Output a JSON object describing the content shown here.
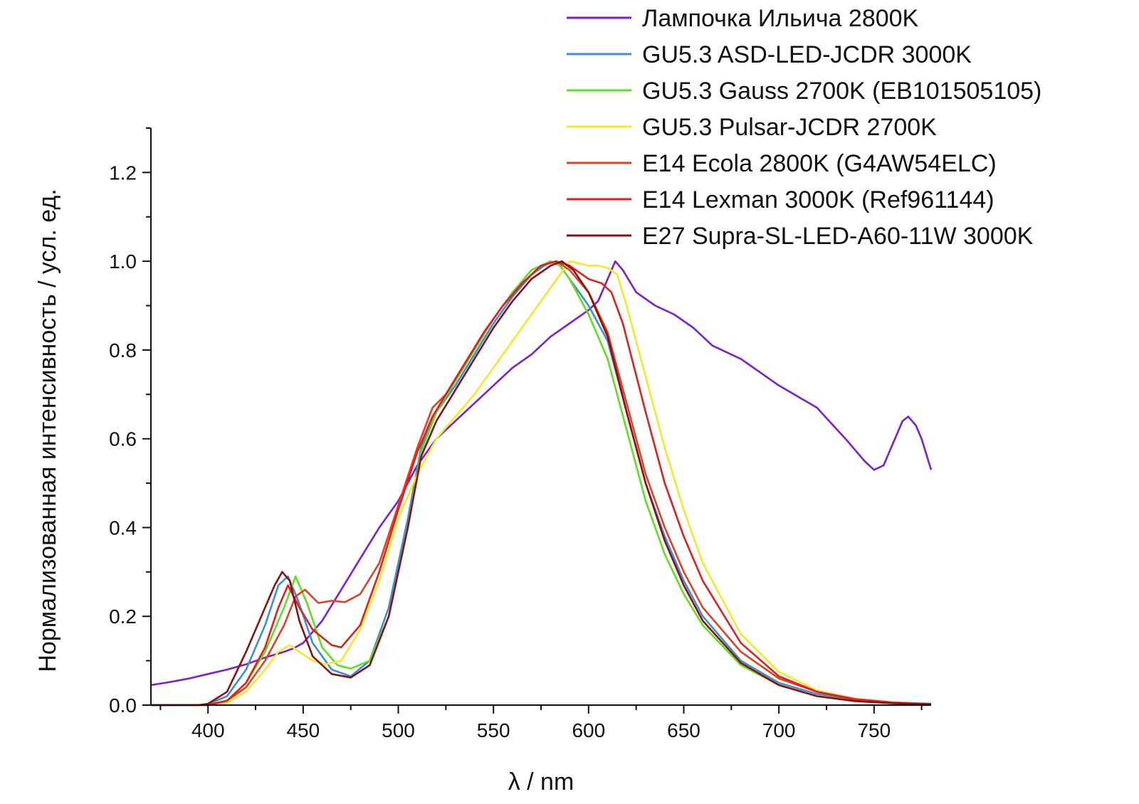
{
  "chart_data": {
    "type": "line",
    "title": "",
    "xlabel": "λ / nm",
    "ylabel": "Нормализованная интенсивность / усл. ед.",
    "xlim": [
      370,
      780
    ],
    "ylim": [
      0,
      1.3
    ],
    "xticks": [
      400,
      450,
      500,
      550,
      600,
      650,
      700,
      750
    ],
    "yticks": [
      0.0,
      0.2,
      0.4,
      0.6,
      0.8,
      1.0,
      1.2
    ],
    "legend_position": "top-right",
    "grid": false,
    "series": [
      {
        "name": "Лампочка Ильича 2800K",
        "color": "#7b1fd1",
        "x": [
          370,
          380,
          390,
          400,
          410,
          420,
          430,
          440,
          445,
          450,
          460,
          470,
          480,
          490,
          500,
          510,
          520,
          530,
          540,
          550,
          560,
          570,
          580,
          590,
          600,
          605,
          610,
          614,
          618,
          625,
          635,
          645,
          655,
          665,
          680,
          700,
          720,
          735,
          745,
          750,
          755,
          760,
          765,
          768,
          772,
          775,
          780
        ],
        "y": [
          0.045,
          0.052,
          0.06,
          0.07,
          0.08,
          0.092,
          0.107,
          0.12,
          0.128,
          0.14,
          0.19,
          0.26,
          0.33,
          0.4,
          0.46,
          0.54,
          0.6,
          0.64,
          0.68,
          0.72,
          0.76,
          0.79,
          0.83,
          0.86,
          0.89,
          0.91,
          0.96,
          1.0,
          0.98,
          0.93,
          0.9,
          0.88,
          0.85,
          0.81,
          0.78,
          0.72,
          0.67,
          0.6,
          0.55,
          0.53,
          0.54,
          0.59,
          0.64,
          0.65,
          0.63,
          0.6,
          0.53
        ]
      },
      {
        "name": "GU5.3 ASD-LED-JCDR 3000K",
        "color": "#3a8fd6",
        "x": [
          370,
          395,
          400,
          410,
          420,
          430,
          437,
          442,
          447,
          455,
          465,
          475,
          485,
          495,
          505,
          512,
          520,
          530,
          540,
          550,
          560,
          570,
          580,
          585,
          590,
          595,
          600,
          610,
          620,
          630,
          640,
          650,
          660,
          680,
          700,
          720,
          740,
          760,
          780
        ],
        "y": [
          0.0,
          0.0,
          0.002,
          0.02,
          0.08,
          0.18,
          0.27,
          0.29,
          0.24,
          0.14,
          0.08,
          0.065,
          0.1,
          0.22,
          0.42,
          0.58,
          0.66,
          0.72,
          0.79,
          0.86,
          0.92,
          0.97,
          1.0,
          0.99,
          0.96,
          0.93,
          0.9,
          0.82,
          0.66,
          0.5,
          0.38,
          0.28,
          0.2,
          0.1,
          0.05,
          0.025,
          0.012,
          0.006,
          0.003
        ]
      },
      {
        "name": "GU5.3 Gauss 2700K (EB101505105)",
        "color": "#5fe01f",
        "x": [
          370,
          400,
          410,
          420,
          430,
          440,
          446,
          452,
          460,
          468,
          475,
          485,
          495,
          505,
          512,
          520,
          530,
          540,
          550,
          560,
          570,
          580,
          585,
          590,
          600,
          610,
          620,
          630,
          640,
          650,
          660,
          680,
          700,
          720,
          740,
          760,
          780
        ],
        "y": [
          0.0,
          0.0,
          0.01,
          0.05,
          0.12,
          0.22,
          0.29,
          0.23,
          0.13,
          0.09,
          0.082,
          0.1,
          0.2,
          0.4,
          0.57,
          0.66,
          0.73,
          0.8,
          0.87,
          0.93,
          0.98,
          1.0,
          0.99,
          0.96,
          0.88,
          0.78,
          0.62,
          0.46,
          0.34,
          0.25,
          0.18,
          0.09,
          0.045,
          0.02,
          0.01,
          0.004,
          0.001
        ]
      },
      {
        "name": "GU5.3 Pulsar-JCDR 2700K",
        "color": "#f2ea27",
        "x": [
          370,
          400,
          410,
          420,
          430,
          437,
          443,
          448,
          455,
          462,
          470,
          480,
          490,
          500,
          510,
          520,
          530,
          540,
          550,
          560,
          570,
          580,
          590,
          600,
          605,
          610,
          615,
          620,
          630,
          640,
          650,
          660,
          680,
          700,
          720,
          740,
          760,
          780
        ],
        "y": [
          0.0,
          0.0,
          0.005,
          0.03,
          0.08,
          0.12,
          0.135,
          0.12,
          0.1,
          0.092,
          0.1,
          0.17,
          0.28,
          0.42,
          0.52,
          0.6,
          0.65,
          0.7,
          0.76,
          0.82,
          0.88,
          0.94,
          1.0,
          0.99,
          0.99,
          0.985,
          0.97,
          0.9,
          0.74,
          0.58,
          0.44,
          0.32,
          0.16,
          0.075,
          0.033,
          0.014,
          0.006,
          0.002
        ]
      },
      {
        "name": "E14 Ecola 2800K (G4AW54ELC)",
        "color": "#e2401f",
        "x": [
          370,
          400,
          410,
          420,
          430,
          440,
          446,
          451,
          458,
          465,
          472,
          480,
          490,
          500,
          510,
          518,
          525,
          535,
          545,
          555,
          565,
          575,
          583,
          590,
          600,
          610,
          620,
          630,
          640,
          650,
          660,
          680,
          700,
          720,
          740,
          760,
          780
        ],
        "y": [
          0.0,
          0.0,
          0.01,
          0.04,
          0.1,
          0.18,
          0.245,
          0.26,
          0.23,
          0.235,
          0.232,
          0.25,
          0.32,
          0.45,
          0.58,
          0.67,
          0.7,
          0.77,
          0.84,
          0.9,
          0.95,
          0.99,
          1.0,
          0.98,
          0.93,
          0.84,
          0.68,
          0.52,
          0.4,
          0.3,
          0.22,
          0.12,
          0.06,
          0.03,
          0.014,
          0.006,
          0.002
        ]
      },
      {
        "name": "E14 Lexman 3000K (Ref961144)",
        "color": "#e01f1f",
        "x": [
          370,
          400,
          410,
          420,
          430,
          437,
          442,
          448,
          455,
          465,
          470,
          480,
          490,
          500,
          510,
          518,
          525,
          535,
          545,
          555,
          565,
          575,
          583,
          590,
          600,
          607,
          612,
          618,
          630,
          640,
          650,
          660,
          680,
          700,
          720,
          740,
          760,
          780
        ],
        "y": [
          0.0,
          0.0,
          0.01,
          0.05,
          0.13,
          0.22,
          0.27,
          0.22,
          0.17,
          0.135,
          0.13,
          0.18,
          0.3,
          0.44,
          0.57,
          0.65,
          0.7,
          0.77,
          0.84,
          0.9,
          0.95,
          0.99,
          1.0,
          0.99,
          0.96,
          0.95,
          0.93,
          0.86,
          0.66,
          0.5,
          0.38,
          0.28,
          0.14,
          0.065,
          0.03,
          0.012,
          0.005,
          0.002
        ]
      },
      {
        "name": "E27 Supra-SL-LED-A60-11W 3000K",
        "color": "#8b1010",
        "x": [
          370,
          395,
          400,
          410,
          420,
          430,
          435,
          439,
          443,
          448,
          455,
          465,
          475,
          485,
          495,
          505,
          512,
          520,
          530,
          540,
          550,
          560,
          570,
          580,
          586,
          592,
          600,
          610,
          620,
          630,
          640,
          650,
          660,
          680,
          700,
          720,
          740,
          760,
          780
        ],
        "y": [
          0.0,
          0.0,
          0.003,
          0.03,
          0.12,
          0.22,
          0.27,
          0.3,
          0.28,
          0.19,
          0.11,
          0.07,
          0.062,
          0.09,
          0.2,
          0.4,
          0.56,
          0.64,
          0.71,
          0.78,
          0.85,
          0.91,
          0.96,
          0.99,
          1.0,
          0.98,
          0.93,
          0.83,
          0.66,
          0.5,
          0.37,
          0.27,
          0.19,
          0.095,
          0.045,
          0.02,
          0.009,
          0.004,
          0.002
        ]
      }
    ]
  }
}
